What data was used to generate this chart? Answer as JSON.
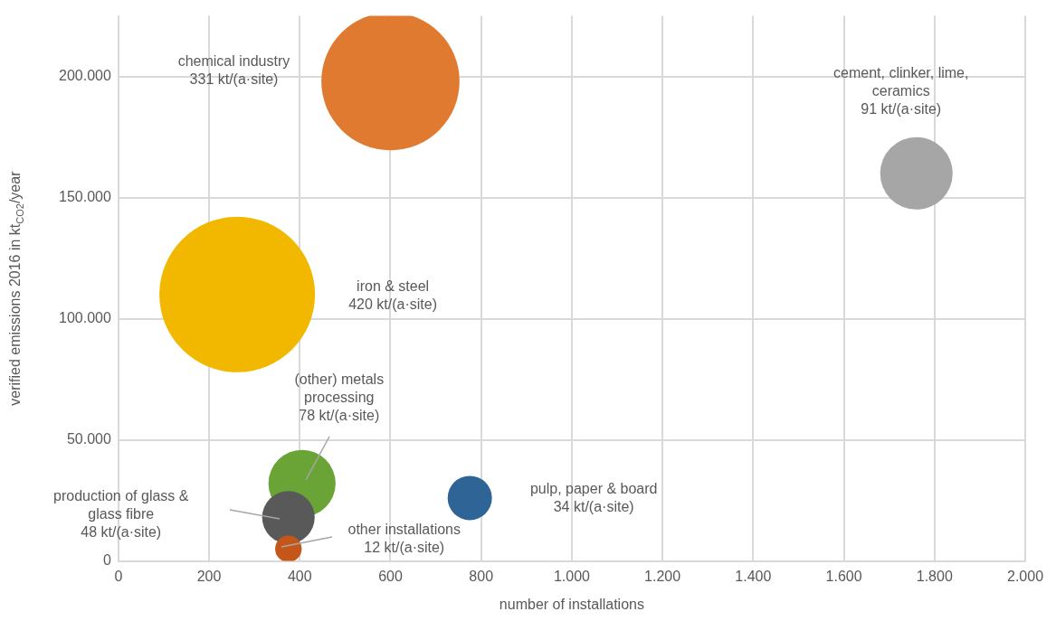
{
  "chart_data": {
    "type": "bubble",
    "xlabel": "number of installations",
    "ylabel": "verified emissions 2016 in kt$_{CO2}$/year",
    "x": [
      600,
      262,
      1760,
      405,
      375,
      775,
      375
    ],
    "values": [
      198000,
      110000,
      160000,
      32000,
      18000,
      26000,
      5000
    ],
    "sizes": [
      0.788,
      1,
      0.217,
      0.186,
      0.114,
      0.081,
      0.029
    ],
    "colors": [
      "#e07a30",
      "#f2b800",
      "#a6a6a6",
      "#6aa336",
      "#595959",
      "#2e6496",
      "#c5561a"
    ],
    "xlim": [
      0,
      2000
    ],
    "xticks": [
      0,
      200,
      400,
      600,
      800,
      {
        "value": 1000,
        "label": "1.000"
      },
      {
        "value": 1200,
        "label": "1.200"
      },
      {
        "value": 1400,
        "label": "1.400"
      },
      {
        "value": 1600,
        "label": "1.600"
      },
      {
        "value": 1800,
        "label": "1.800"
      },
      {
        "value": 2000,
        "label": "2.000"
      }
    ],
    "ylim": [
      0,
      225000
    ],
    "yticks": [
      0,
      {
        "value": 50000,
        "label": "50.000"
      },
      {
        "value": 100000,
        "label": "100.000"
      },
      {
        "value": 150000,
        "label": "150.000"
      },
      {
        "value": 200000,
        "label": "200.000"
      }
    ],
    "grid": true,
    "legend": false,
    "annotations": [
      "chemical industry\n331 kt/(a·site)",
      "iron & steel\n420 kt/(a·site)",
      "cement, clinker, lime,\nceramics\n91 kt/(a·site)",
      "(other) metals\nprocessing\n78 kt/(a·site)",
      "production of glass &\nglass fibre\n48 kt/(a·site)",
      "pulp, paper & board\n34 kt/(a·site)",
      "other installations\n12 kt/(a·site)"
    ]
  }
}
